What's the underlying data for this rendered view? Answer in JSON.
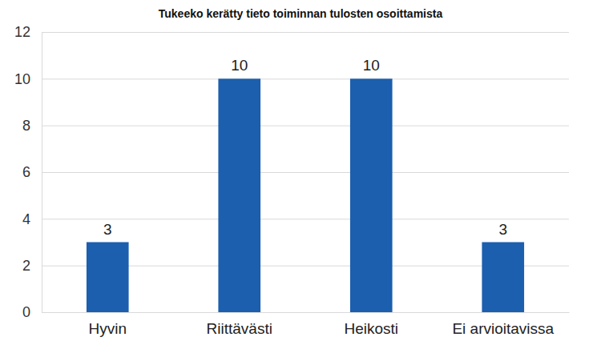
{
  "chart_data": {
    "type": "bar",
    "title": "Tukeeko kerätty tieto toiminnan tulosten osoittamista",
    "categories": [
      "Hyvin",
      "Riittävästi",
      "Heikosti",
      "Ei arvioitavissa"
    ],
    "values": [
      3,
      10,
      10,
      3
    ],
    "color": "#1b5fae",
    "ylim": [
      0,
      12
    ],
    "yticks": [
      0,
      2,
      4,
      6,
      8,
      10,
      12
    ],
    "grid": true,
    "data_labels": true
  }
}
